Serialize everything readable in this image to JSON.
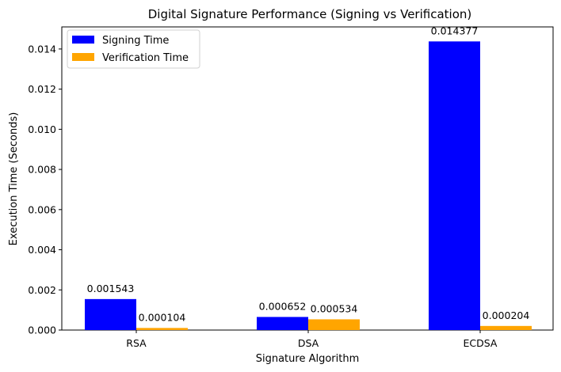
{
  "chart_data": {
    "type": "bar",
    "title": "Digital Signature Performance (Signing vs Verification)",
    "xlabel": "Signature Algorithm",
    "ylabel": "Execution Time (Seconds)",
    "categories": [
      "RSA",
      "DSA",
      "ECDSA"
    ],
    "series": [
      {
        "name": "Signing Time",
        "values": [
          0.001543,
          0.000652,
          0.014377
        ],
        "labels": [
          "0.001543",
          "0.000652",
          "0.014377"
        ],
        "color": "#0000ff"
      },
      {
        "name": "Verification Time",
        "values": [
          0.000104,
          0.000534,
          0.000204
        ],
        "labels": [
          "0.000104",
          "0.000534",
          "0.000204"
        ],
        "color": "#ffa500"
      }
    ],
    "ylim": [
      0,
      0.0151
    ],
    "yticks": [
      0.0,
      0.002,
      0.004,
      0.006,
      0.008,
      0.01,
      0.012,
      0.014
    ],
    "ytick_labels": [
      "0.000",
      "0.002",
      "0.004",
      "0.006",
      "0.008",
      "0.010",
      "0.012",
      "0.014"
    ],
    "grid": false,
    "legend_position": "upper-left"
  }
}
